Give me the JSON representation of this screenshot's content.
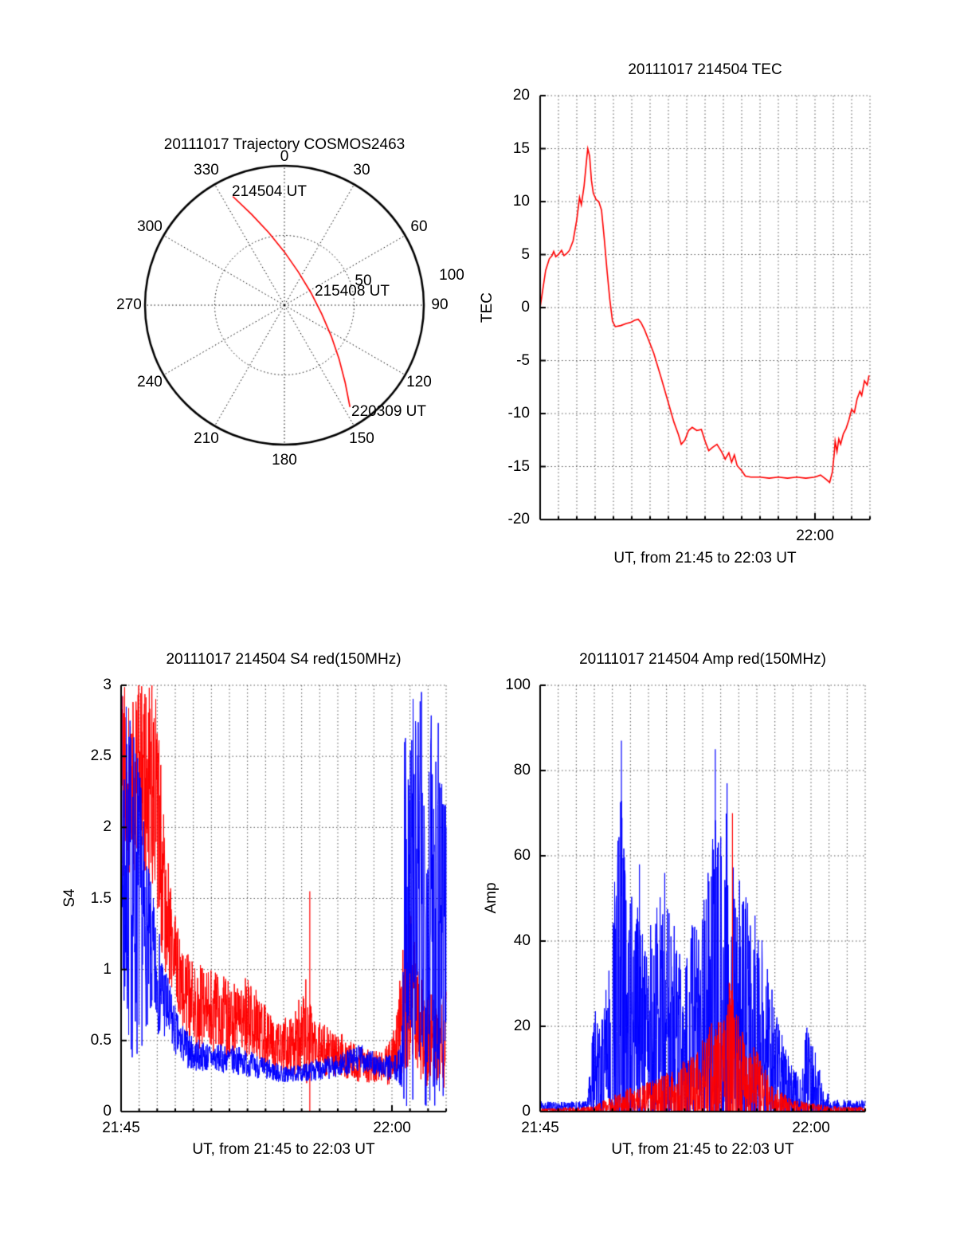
{
  "figure": {
    "background": "#ffffff"
  },
  "colors": {
    "red": "#ff0000",
    "blue": "#0000ff",
    "axis": "#000000",
    "grid": "#555555"
  },
  "chart_data": [
    {
      "id": "trajectory",
      "type": "polar-trajectory",
      "title": "20111017 Trajectory COSMOS2463",
      "azimuth_ticks": [
        0,
        30,
        60,
        90,
        120,
        150,
        180,
        210,
        240,
        270,
        300,
        330
      ],
      "radial_ticks": [
        50,
        100
      ],
      "rmax": 100,
      "trajectory_color": "#ff0000",
      "path_xy": [
        [
          -37,
          78
        ],
        [
          -23.6,
          65.2
        ],
        [
          -11.2,
          52
        ],
        [
          0,
          38.2
        ],
        [
          10,
          23.8
        ],
        [
          19,
          9
        ],
        [
          26.8,
          -6.4
        ],
        [
          33.6,
          -22.2
        ],
        [
          39.2,
          -38.6
        ],
        [
          43.6,
          -55.6
        ],
        [
          47,
          -73
        ]
      ],
      "annotations": [
        {
          "label": "214504 UT",
          "position": "start"
        },
        {
          "label": "215408 UT",
          "position": "middle"
        },
        {
          "label": "220309 UT",
          "position": "end"
        }
      ]
    },
    {
      "id": "tec",
      "type": "line",
      "title": "20111017 214504 TEC",
      "xlabel": "UT, from 21:45 to 22:03 UT",
      "ylabel": "TEC",
      "xlim_minutes": [
        0,
        18
      ],
      "ylim": [
        -20,
        20
      ],
      "grid": true,
      "yticks": [
        20,
        15,
        10,
        5,
        0,
        -5,
        -10,
        -15,
        -20
      ],
      "xticks": [
        {
          "minute": 15,
          "label": "22:00"
        }
      ],
      "series": [
        {
          "name": "red",
          "color": "#ff0000",
          "points": [
            [
              0,
              0
            ],
            [
              0.3,
              3.5
            ],
            [
              0.5,
              4.6
            ],
            [
              0.65,
              4.9
            ],
            [
              0.74,
              5.3
            ],
            [
              0.85,
              4.8
            ],
            [
              1.0,
              5.0
            ],
            [
              1.17,
              5.4
            ],
            [
              1.3,
              4.9
            ],
            [
              1.45,
              5.1
            ],
            [
              1.6,
              5.4
            ],
            [
              1.8,
              6.3
            ],
            [
              2.0,
              8.3
            ],
            [
              2.15,
              10.4
            ],
            [
              2.25,
              9.7
            ],
            [
              2.4,
              11.5
            ],
            [
              2.55,
              14.2
            ],
            [
              2.6,
              15.0
            ],
            [
              2.7,
              14.3
            ],
            [
              2.8,
              12.0
            ],
            [
              2.9,
              10.8
            ],
            [
              3.05,
              10.2
            ],
            [
              3.2,
              10.0
            ],
            [
              3.35,
              9.2
            ],
            [
              3.5,
              6.5
            ],
            [
              3.65,
              3.5
            ],
            [
              3.8,
              0.8
            ],
            [
              3.95,
              -1.3
            ],
            [
              4.1,
              -1.8
            ],
            [
              4.4,
              -1.7
            ],
            [
              4.7,
              -1.5
            ],
            [
              4.95,
              -1.4
            ],
            [
              5.15,
              -1.2
            ],
            [
              5.35,
              -1.1
            ],
            [
              5.5,
              -1.4
            ],
            [
              5.7,
              -2.1
            ],
            [
              5.95,
              -3.2
            ],
            [
              6.2,
              -4.3
            ],
            [
              6.6,
              -6.6
            ],
            [
              7.0,
              -9.0
            ],
            [
              7.3,
              -10.8
            ],
            [
              7.55,
              -12.0
            ],
            [
              7.7,
              -12.9
            ],
            [
              7.9,
              -12.5
            ],
            [
              8.1,
              -11.6
            ],
            [
              8.3,
              -11.3
            ],
            [
              8.55,
              -11.6
            ],
            [
              8.8,
              -11.5
            ],
            [
              9.0,
              -12.6
            ],
            [
              9.2,
              -13.5
            ],
            [
              9.4,
              -13.2
            ],
            [
              9.65,
              -12.9
            ],
            [
              9.9,
              -13.6
            ],
            [
              10.1,
              -14.3
            ],
            [
              10.3,
              -13.7
            ],
            [
              10.45,
              -14.6
            ],
            [
              10.6,
              -13.9
            ],
            [
              10.75,
              -14.9
            ],
            [
              11.0,
              -15.4
            ],
            [
              11.2,
              -15.9
            ],
            [
              11.5,
              -16.0
            ],
            [
              12.0,
              -16.0
            ],
            [
              12.5,
              -16.1
            ],
            [
              13.0,
              -16.0
            ],
            [
              13.5,
              -16.1
            ],
            [
              14.0,
              -16.0
            ],
            [
              14.5,
              -16.1
            ],
            [
              15.0,
              -16.0
            ],
            [
              15.3,
              -15.8
            ],
            [
              15.6,
              -16.2
            ],
            [
              15.8,
              -16.5
            ],
            [
              15.95,
              -15.5
            ],
            [
              16.05,
              -13.8
            ],
            [
              16.1,
              -12.6
            ],
            [
              16.2,
              -13.6
            ],
            [
              16.3,
              -12.4
            ],
            [
              16.4,
              -12.9
            ],
            [
              16.55,
              -11.9
            ],
            [
              16.7,
              -11.4
            ],
            [
              16.85,
              -10.6
            ],
            [
              17.0,
              -9.6
            ],
            [
              17.15,
              -9.9
            ],
            [
              17.3,
              -8.6
            ],
            [
              17.45,
              -7.9
            ],
            [
              17.55,
              -8.3
            ],
            [
              17.7,
              -6.9
            ],
            [
              17.85,
              -7.3
            ],
            [
              17.95,
              -6.4
            ]
          ]
        }
      ]
    },
    {
      "id": "s4",
      "type": "scintillation-noise",
      "title": "20111017 214504 S4 red(150MHz)",
      "xlabel": "UT, from 21:45 to 22:03 UT",
      "ylabel": "S4",
      "xlim_minutes": [
        0,
        18
      ],
      "ylim": [
        0,
        3
      ],
      "grid": true,
      "yticks": [
        3,
        2.5,
        2,
        1.5,
        1,
        0.5,
        0
      ],
      "xticks": [
        {
          "minute": 0,
          "label": "21:45"
        },
        {
          "minute": 15,
          "label": "22:00"
        }
      ],
      "series": [
        {
          "name": "red",
          "color": "#ff0000",
          "seed": 41,
          "envelope": [
            [
              0,
              2.3,
              0.75
            ],
            [
              1.0,
              2.4,
              0.65
            ],
            [
              1.9,
              2.2,
              0.8
            ],
            [
              2.4,
              1.6,
              0.6
            ],
            [
              2.9,
              1.1,
              0.35
            ],
            [
              3.4,
              0.85,
              0.3
            ],
            [
              4.2,
              0.75,
              0.3
            ],
            [
              5.2,
              0.7,
              0.3
            ],
            [
              6.2,
              0.62,
              0.28
            ],
            [
              7.2,
              0.68,
              0.3
            ],
            [
              7.6,
              0.55,
              0.25
            ],
            [
              8.5,
              0.48,
              0.2
            ],
            [
              9.5,
              0.45,
              0.2
            ],
            [
              10.3,
              0.55,
              0.45
            ],
            [
              10.6,
              0.45,
              0.2
            ],
            [
              11.5,
              0.42,
              0.18
            ],
            [
              12.5,
              0.38,
              0.15
            ],
            [
              13.5,
              0.32,
              0.12
            ],
            [
              14.5,
              0.3,
              0.12
            ],
            [
              15.2,
              0.4,
              0.2
            ],
            [
              15.7,
              0.8,
              0.6
            ],
            [
              16.1,
              1.0,
              0.6
            ],
            [
              16.4,
              0.6,
              0.4
            ],
            [
              17.0,
              0.5,
              0.35
            ],
            [
              18,
              0.5,
              0.35
            ]
          ],
          "spikes": [
            [
              10.45,
              1.55
            ]
          ]
        },
        {
          "name": "blue",
          "color": "#0000ff",
          "seed": 7,
          "envelope": [
            [
              0,
              1.7,
              1.3
            ],
            [
              0.9,
              1.5,
              1.2
            ],
            [
              1.4,
              1.2,
              0.6
            ],
            [
              2.0,
              0.95,
              0.4
            ],
            [
              2.6,
              0.7,
              0.25
            ],
            [
              3.2,
              0.5,
              0.15
            ],
            [
              4.0,
              0.4,
              0.12
            ],
            [
              5.0,
              0.38,
              0.1
            ],
            [
              6.5,
              0.36,
              0.1
            ],
            [
              8.0,
              0.3,
              0.08
            ],
            [
              9.0,
              0.26,
              0.06
            ],
            [
              10.0,
              0.27,
              0.06
            ],
            [
              11.0,
              0.3,
              0.08
            ],
            [
              12.0,
              0.32,
              0.08
            ],
            [
              13.3,
              0.38,
              0.1
            ],
            [
              14.2,
              0.32,
              0.08
            ],
            [
              15.3,
              0.3,
              0.1
            ],
            [
              15.55,
              0.35,
              0.2
            ],
            [
              15.7,
              1.5,
              1.5
            ],
            [
              18,
              1.5,
              1.5
            ]
          ],
          "spikes": []
        }
      ]
    },
    {
      "id": "amp",
      "type": "scintillation-noise",
      "title": "20111017 214504 Amp red(150MHz)",
      "xlabel": "UT, from 21:45 to 22:03 UT",
      "ylabel": "Amp",
      "xlim_minutes": [
        0,
        18
      ],
      "ylim": [
        0,
        100
      ],
      "grid": true,
      "yticks": [
        100,
        80,
        60,
        40,
        20,
        0
      ],
      "xticks": [
        {
          "minute": 0,
          "label": "21:45"
        },
        {
          "minute": 15,
          "label": "22:00"
        }
      ],
      "series": [
        {
          "name": "blue",
          "color": "#0000ff",
          "seed": 19,
          "envelope": [
            [
              0,
              1.2,
              1.2
            ],
            [
              2.6,
              1.2,
              1.2
            ],
            [
              2.85,
              6,
              9
            ],
            [
              3.05,
              12,
              14
            ],
            [
              3.35,
              8,
              12
            ],
            [
              3.8,
              14,
              22
            ],
            [
              4.3,
              24,
              40
            ],
            [
              4.55,
              28,
              52
            ],
            [
              4.85,
              18,
              30
            ],
            [
              5.35,
              20,
              34
            ],
            [
              5.85,
              16,
              28
            ],
            [
              6.35,
              18,
              32
            ],
            [
              6.85,
              20,
              32
            ],
            [
              7.35,
              17,
              28
            ],
            [
              7.85,
              14,
              24
            ],
            [
              8.35,
              17,
              28
            ],
            [
              8.85,
              19,
              30
            ],
            [
              9.35,
              21,
              36
            ],
            [
              9.7,
              28,
              52
            ],
            [
              10.05,
              24,
              42
            ],
            [
              10.4,
              26,
              46
            ],
            [
              10.85,
              20,
              36
            ],
            [
              11.35,
              19,
              33
            ],
            [
              11.85,
              17,
              28
            ],
            [
              12.35,
              16,
              26
            ],
            [
              12.85,
              11,
              18
            ],
            [
              13.35,
              7,
              12
            ],
            [
              13.85,
              4,
              8
            ],
            [
              14.35,
              3,
              5
            ],
            [
              14.75,
              7,
              13
            ],
            [
              15.25,
              5,
              10
            ],
            [
              15.65,
              2.5,
              5
            ],
            [
              16.1,
              1.2,
              1.6
            ],
            [
              18,
              1.2,
              1.6
            ]
          ],
          "spikes": [
            [
              4.5,
              87
            ],
            [
              5.5,
              58
            ],
            [
              6.9,
              56
            ],
            [
              9.7,
              85
            ],
            [
              10.35,
              77
            ],
            [
              11.9,
              46
            ]
          ]
        },
        {
          "name": "red",
          "color": "#ff0000",
          "seed": 23,
          "envelope": [
            [
              0,
              0.3,
              0.4
            ],
            [
              3.0,
              0.5,
              0.8
            ],
            [
              3.6,
              1.2,
              1.8
            ],
            [
              4.6,
              2,
              3
            ],
            [
              5.6,
              2.5,
              4
            ],
            [
              6.6,
              3,
              5
            ],
            [
              7.6,
              4,
              6.5
            ],
            [
              8.6,
              5.5,
              9
            ],
            [
              9.1,
              6.5,
              11
            ],
            [
              9.6,
              8,
              14
            ],
            [
              10.1,
              8,
              13
            ],
            [
              10.55,
              11,
              22
            ],
            [
              10.75,
              9,
              15
            ],
            [
              11.2,
              8,
              13
            ],
            [
              11.7,
              6,
              10
            ],
            [
              12.2,
              5,
              8
            ],
            [
              12.7,
              3,
              5
            ],
            [
              13.2,
              2,
              3
            ],
            [
              14.0,
              1.2,
              1.8
            ],
            [
              15.0,
              0.8,
              1.2
            ],
            [
              16.0,
              0.5,
              0.8
            ],
            [
              18,
              0.4,
              0.7
            ]
          ],
          "spikes": [
            [
              10.65,
              70
            ],
            [
              10.5,
              30
            ]
          ]
        }
      ]
    }
  ]
}
